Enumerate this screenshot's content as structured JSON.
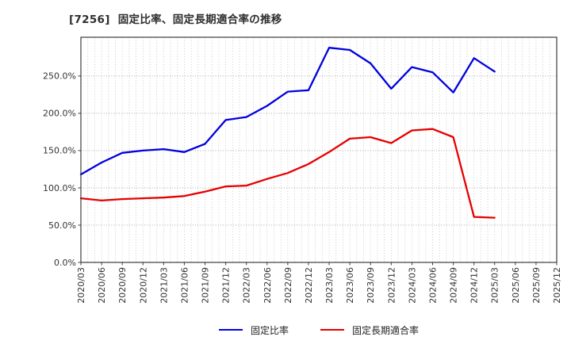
{
  "header": {
    "title": "[7256]  固定比率、固定長期適合率の推移"
  },
  "chart_data": {
    "type": "line",
    "title": "[7256]  固定比率、固定長期適合率の推移",
    "categories": [
      "2020/03",
      "2020/06",
      "2020/09",
      "2020/12",
      "2021/03",
      "2021/06",
      "2021/09",
      "2021/12",
      "2022/03",
      "2022/06",
      "2022/09",
      "2022/12",
      "2023/03",
      "2023/06",
      "2023/09",
      "2023/12",
      "2024/03",
      "2024/06",
      "2024/09",
      "2024/12",
      "2025/03",
      "2025/06",
      "2025/09",
      "2025/12"
    ],
    "series": [
      {
        "name": "固定比率",
        "color": "#0000e0",
        "unit": "%",
        "values": [
          118,
          134,
          147,
          150,
          152,
          148,
          159,
          191,
          195,
          210,
          229,
          231,
          288,
          285,
          267,
          233,
          262,
          255,
          228,
          274,
          256
        ]
      },
      {
        "name": "固定長期適合率",
        "color": "#e60000",
        "unit": "%",
        "values": [
          86,
          83,
          85,
          86,
          87,
          89,
          95,
          102,
          103,
          112,
          120,
          132,
          148,
          166,
          168,
          160,
          177,
          179,
          168,
          61,
          60
        ]
      }
    ],
    "xlabel": "",
    "ylabel": "",
    "ylim": [
      0,
      302
    ],
    "ytick_values": [
      0,
      50,
      100,
      150,
      200,
      250
    ],
    "ytick_labels": [
      "0.0%",
      "50.0%",
      "100.0%",
      "150.0%",
      "200.0%",
      "250.0%"
    ],
    "grid": "on",
    "legend_position": "bottom-center"
  },
  "legend": {
    "items": [
      {
        "label": "固定比率",
        "color": "#0000e0"
      },
      {
        "label": "固定長期適合率",
        "color": "#e60000"
      }
    ]
  },
  "colors": {
    "axis": "#3c3c3c",
    "tick_text": "#333333",
    "grid_major": "#9b9b9b",
    "grid_minor": "#bdbdbd"
  }
}
